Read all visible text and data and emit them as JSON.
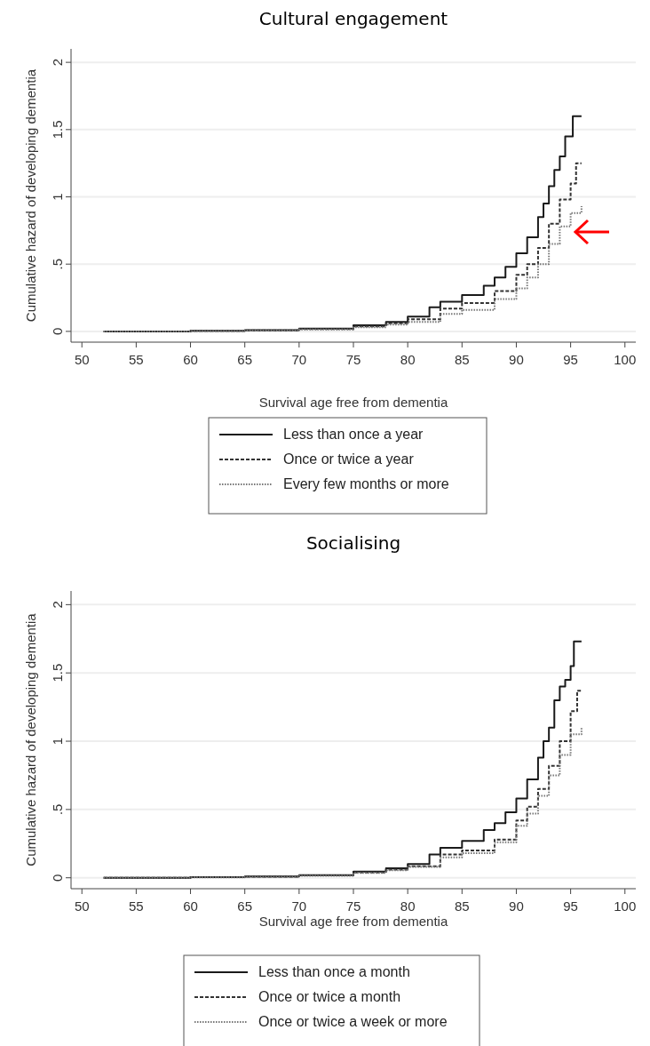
{
  "chart_data": [
    {
      "type": "step",
      "title": "Cultural engagement",
      "xlabel": "Survival age free from dementia",
      "ylabel": "Cumulative hazard of developing dementia",
      "xlim": [
        49,
        101
      ],
      "xticks": [
        50,
        55,
        60,
        65,
        70,
        75,
        80,
        85,
        90,
        95,
        100
      ],
      "ylim": [
        -0.08,
        2.1
      ],
      "yticks": [
        0,
        {
          "value": 0.5,
          "label": ".5"
        },
        1,
        1.5,
        2
      ],
      "grid": "y",
      "legend": "bottom",
      "series": [
        {
          "name": "Less than once a year",
          "color": "#1a1a1a",
          "line_style": "solid",
          "x": [
            52,
            60,
            65,
            70,
            75,
            78,
            80,
            82,
            83,
            85,
            87,
            88,
            89,
            90,
            91,
            92,
            92.5,
            93,
            93.5,
            94,
            94.5,
            95.2,
            96
          ],
          "values": [
            0,
            0.005,
            0.01,
            0.02,
            0.045,
            0.07,
            0.11,
            0.18,
            0.22,
            0.27,
            0.34,
            0.4,
            0.48,
            0.58,
            0.7,
            0.85,
            0.95,
            1.08,
            1.2,
            1.3,
            1.45,
            1.6,
            1.6
          ]
        },
        {
          "name": "Once or twice a year",
          "color": "#333333",
          "line_style": "dashed",
          "x": [
            52,
            60,
            65,
            70,
            75,
            78,
            80,
            83,
            85,
            88,
            90,
            91,
            92,
            93,
            94,
            95,
            95.5,
            96
          ],
          "values": [
            0,
            0.004,
            0.008,
            0.017,
            0.038,
            0.06,
            0.09,
            0.17,
            0.21,
            0.3,
            0.42,
            0.5,
            0.62,
            0.8,
            0.98,
            1.1,
            1.25,
            1.25
          ]
        },
        {
          "name": "Every few months or more",
          "color": "#777777",
          "line_style": "dotted",
          "x": [
            52,
            60,
            65,
            70,
            75,
            78,
            80,
            83,
            85,
            88,
            90,
            91,
            92,
            93,
            94,
            95,
            96
          ],
          "values": [
            0,
            0.003,
            0.006,
            0.014,
            0.03,
            0.05,
            0.07,
            0.13,
            0.16,
            0.24,
            0.32,
            0.4,
            0.5,
            0.65,
            0.78,
            0.88,
            0.93
          ]
        }
      ]
    },
    {
      "type": "step",
      "title": "Socialising",
      "xlabel": "Survival age free from dementia",
      "ylabel": "Cumulative hazard of developing dementia",
      "xlim": [
        49,
        101
      ],
      "xticks": [
        50,
        55,
        60,
        65,
        70,
        75,
        80,
        85,
        90,
        95,
        100
      ],
      "ylim": [
        -0.08,
        2.1
      ],
      "yticks": [
        0,
        {
          "value": 0.5,
          "label": ".5"
        },
        1,
        1.5,
        2
      ],
      "grid": "y",
      "legend": "bottom",
      "series": [
        {
          "name": "Less than once a month",
          "color": "#1a1a1a",
          "line_style": "solid",
          "x": [
            52,
            60,
            65,
            70,
            75,
            78,
            80,
            82,
            83,
            85,
            87,
            88,
            89,
            90,
            91,
            92,
            92.5,
            93,
            93.5,
            94,
            94.5,
            95,
            95.3,
            96
          ],
          "values": [
            0,
            0.005,
            0.01,
            0.02,
            0.045,
            0.07,
            0.1,
            0.17,
            0.22,
            0.27,
            0.35,
            0.4,
            0.48,
            0.58,
            0.72,
            0.88,
            1.0,
            1.1,
            1.3,
            1.4,
            1.45,
            1.55,
            1.73,
            1.73
          ]
        },
        {
          "name": "Once or twice a month",
          "color": "#333333",
          "line_style": "dashed",
          "x": [
            52,
            60,
            65,
            70,
            75,
            78,
            80,
            83,
            85,
            88,
            90,
            91,
            92,
            93,
            94,
            95,
            95.6,
            96
          ],
          "values": [
            0,
            0.004,
            0.008,
            0.017,
            0.038,
            0.06,
            0.085,
            0.17,
            0.2,
            0.28,
            0.42,
            0.52,
            0.65,
            0.82,
            1.0,
            1.22,
            1.37,
            1.37
          ]
        },
        {
          "name": "Once or twice a week or more",
          "color": "#777777",
          "line_style": "dotted",
          "x": [
            52,
            60,
            65,
            70,
            75,
            78,
            80,
            83,
            85,
            88,
            90,
            91,
            92,
            93,
            94,
            95,
            96
          ],
          "values": [
            0,
            0.003,
            0.007,
            0.015,
            0.035,
            0.055,
            0.08,
            0.15,
            0.18,
            0.26,
            0.38,
            0.47,
            0.6,
            0.75,
            0.9,
            1.05,
            1.1
          ]
        }
      ]
    }
  ]
}
